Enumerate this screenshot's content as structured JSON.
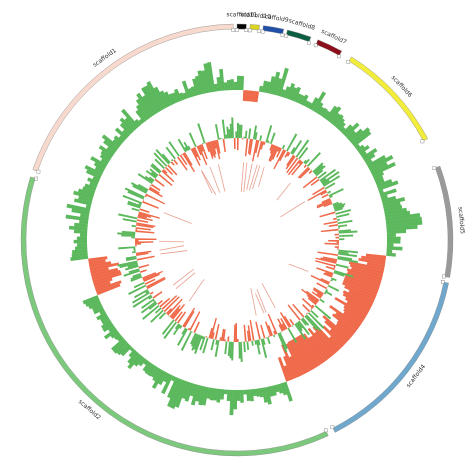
{
  "contigs": [
    {
      "label": "scaffold11",
      "start": 0.0,
      "end": 2.5,
      "color": "#000000"
    },
    {
      "label": "scaffold10",
      "start": 3.5,
      "end": 6.0,
      "color": "#d9d520"
    },
    {
      "label": "scaffold9",
      "start": 7.0,
      "end": 12.5,
      "color": "#1f4fa6"
    },
    {
      "label": "scaffold8",
      "start": 13.5,
      "end": 20.0,
      "color": "#0c5e43"
    },
    {
      "label": "scaffold7",
      "start": 22.0,
      "end": 29.0,
      "color": "#8a0f1b"
    },
    {
      "label": "scaffold6",
      "start": 32.0,
      "end": 62.0,
      "color": "#f2ec3a"
    },
    {
      "label": "scaffold5",
      "start": 70.0,
      "end": 100.0,
      "color": "#9a9a9a"
    },
    {
      "label": "scaffold4",
      "start": 101.5,
      "end": 153.0,
      "color": "#6fa8cc"
    },
    {
      "label": "scaffold2",
      "start": 155.0,
      "end": 287.0,
      "color": "#7cc87c"
    },
    {
      "label": "scaffold1",
      "start": 289.0,
      "end": 359.0,
      "color": "#f7d9ce"
    }
  ],
  "tracks": {
    "gc_content": {
      "positive_color": "#5cb85c",
      "negative_color": "#ef6a4a"
    },
    "gc_skew": {
      "positive_color": "#5cb85c",
      "negative_color": "#ef6a4a"
    },
    "links": {
      "color": "#e8a090"
    }
  }
}
